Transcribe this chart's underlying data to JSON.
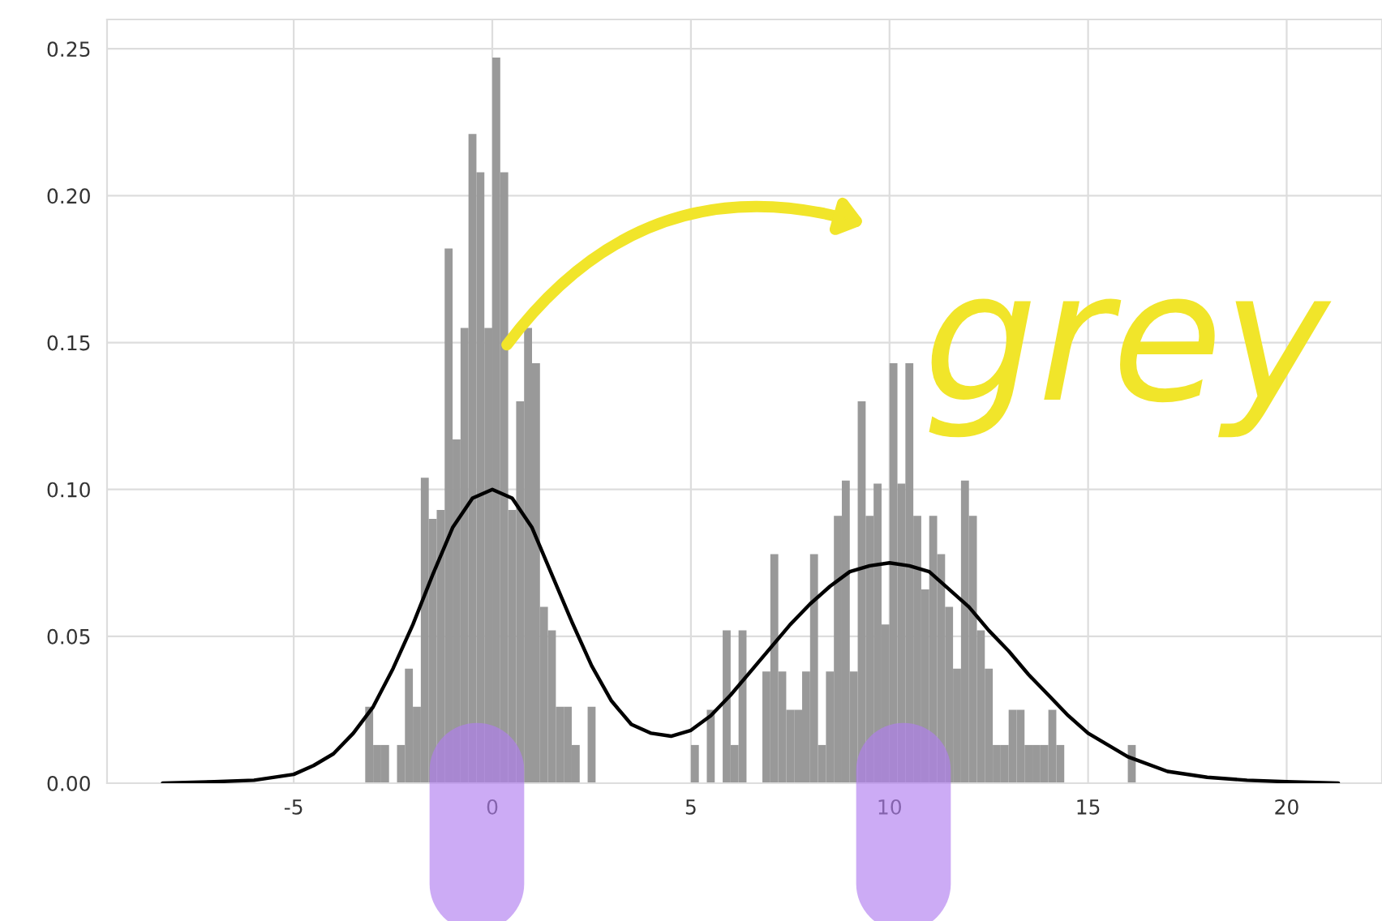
{
  "chart_data": {
    "type": "histogram",
    "bins": [
      -3.2,
      -3.0,
      -2.8,
      -2.6,
      -2.4,
      -2.2,
      -2.0,
      -1.8,
      -1.6,
      -1.4,
      -1.2,
      -1.0,
      -0.8,
      -0.6,
      -0.4,
      -0.2,
      0.0,
      0.2,
      0.4,
      0.6,
      0.8,
      1.0,
      1.2,
      1.4,
      1.6,
      1.8,
      2.0,
      2.2,
      2.4,
      2.6,
      2.8,
      3.0,
      3.2,
      3.4,
      3.6,
      3.8,
      4.0,
      4.2,
      4.4,
      4.6,
      4.8,
      5.0,
      5.2,
      5.4,
      5.6,
      5.8,
      6.0,
      6.2,
      6.4,
      6.6,
      6.8,
      7.0,
      7.2,
      7.4,
      7.6,
      7.8,
      8.0,
      8.2,
      8.4,
      8.6,
      8.8,
      9.0,
      9.2,
      9.4,
      9.6,
      9.8,
      10.0,
      10.2,
      10.4,
      10.6,
      10.8,
      11.0,
      11.2,
      11.4,
      11.6,
      11.8,
      12.0,
      12.2,
      12.4,
      12.6,
      12.8,
      13.0,
      13.2,
      13.4,
      13.6,
      13.8,
      14.0,
      14.2,
      14.4,
      14.6,
      14.8,
      15.0,
      15.2,
      15.4,
      15.6,
      15.8,
      16.0,
      16.2
    ],
    "series": [
      {
        "color": "#999999",
        "values": [
          0.026,
          0.013,
          0.013,
          0,
          0.013,
          0.039,
          0.026,
          0.104,
          0.09,
          0.093,
          0.182,
          0.117,
          0.155,
          0.221,
          0.208,
          0.155,
          0.247,
          0.208,
          0.093,
          0.13,
          0.155,
          0.143,
          0.06,
          0.052,
          0.026,
          0.026,
          0.013,
          0,
          0.026,
          0,
          0,
          0,
          0,
          0,
          0,
          0,
          0,
          0,
          0,
          0,
          0,
          0.013,
          0,
          0.025,
          0,
          0.052,
          0.013,
          0.052,
          0,
          0,
          0.038,
          0.078,
          0.038,
          0.025,
          0.025,
          0.038,
          0.078,
          0.013,
          0.038,
          0.091,
          0.103,
          0.038,
          0.13,
          0.091,
          0.102,
          0.054,
          0.143,
          0.102,
          0.143,
          0.091,
          0.066,
          0.091,
          0.078,
          0.06,
          0.039,
          0.103,
          0.091,
          0.052,
          0.039,
          0.013,
          0.013,
          0.025,
          0.025,
          0.013,
          0.013,
          0.013,
          0.025,
          0.013,
          0,
          0,
          0,
          0,
          0,
          0,
          0,
          0,
          0.013
        ]
      },
      {
        "type": "line",
        "color": "#000000",
        "x": [
          -8.3,
          -7,
          -6,
          -5,
          -4.5,
          -4,
          -3.5,
          -3,
          -2.5,
          -2,
          -1.5,
          -1,
          -0.5,
          0,
          0.5,
          1,
          1.5,
          2,
          2.5,
          3,
          3.5,
          4,
          4.5,
          5,
          5.5,
          6,
          6.5,
          7,
          7.5,
          8,
          8.5,
          9,
          9.5,
          10,
          10.5,
          11,
          11.5,
          12,
          12.5,
          13,
          13.5,
          14,
          14.5,
          15,
          15.5,
          16,
          17,
          18,
          19,
          20,
          21.3
        ],
        "values": [
          0,
          0.0005,
          0.001,
          0.003,
          0.006,
          0.01,
          0.017,
          0.026,
          0.039,
          0.054,
          0.071,
          0.087,
          0.097,
          0.1,
          0.097,
          0.087,
          0.071,
          0.055,
          0.04,
          0.028,
          0.02,
          0.017,
          0.016,
          0.018,
          0.023,
          0.03,
          0.038,
          0.046,
          0.054,
          0.061,
          0.067,
          0.072,
          0.074,
          0.075,
          0.074,
          0.072,
          0.066,
          0.06,
          0.052,
          0.045,
          0.037,
          0.03,
          0.023,
          0.017,
          0.013,
          0.009,
          0.004,
          0.002,
          0.001,
          0.0005,
          0
        ]
      }
    ],
    "xlim": [
      -9.7,
      22.4
    ],
    "ylim": [
      0,
      0.26
    ],
    "xticks": [
      -5,
      0,
      5,
      10,
      15,
      20
    ],
    "yticks": [
      {
        "value": 0,
        "label": "0.00"
      },
      {
        "value": 0.05,
        "label": "0.05"
      },
      {
        "value": 0.1,
        "label": "0.10"
      },
      {
        "value": 0.15,
        "label": "0.15"
      },
      {
        "value": 0.2,
        "label": "0.20"
      },
      {
        "value": 0.25,
        "label": "0.25"
      }
    ],
    "grid": true,
    "annotations": [
      "grey"
    ]
  }
}
